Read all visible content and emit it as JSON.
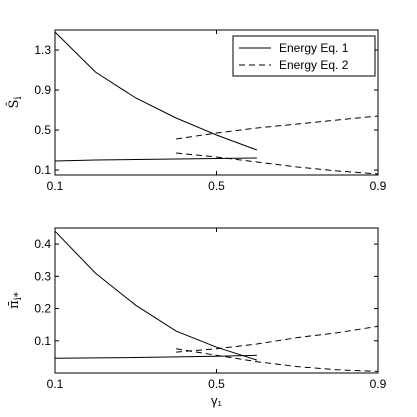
{
  "chart_data": [
    {
      "type": "line",
      "ylabel": "Ŝ_i",
      "xlim": [
        0.1,
        0.9
      ],
      "ylim": [
        0.05,
        1.5
      ],
      "xticks": [
        "0.1",
        "0.5",
        "0.9"
      ],
      "yticks": [
        "0.1",
        "0.5",
        "0.9",
        "1.3"
      ],
      "xtick_values": [
        0.1,
        0.5,
        0.9
      ],
      "ytick_values": [
        0.1,
        0.5,
        0.9,
        1.3
      ],
      "legend": {
        "position": "top-right",
        "entries": [
          "Energy Eq. 1",
          "Energy Eq. 2"
        ]
      },
      "series": [
        {
          "name": "Energy Eq. 1",
          "style": "solid",
          "x": [
            0.1,
            0.2,
            0.3,
            0.4,
            0.5,
            0.6
          ],
          "y": [
            1.48,
            1.08,
            0.82,
            0.62,
            0.45,
            0.3
          ]
        },
        {
          "name": "Energy Eq. 1",
          "style": "solid",
          "x": [
            0.1,
            0.2,
            0.3,
            0.4,
            0.5,
            0.6
          ],
          "y": [
            0.19,
            0.2,
            0.205,
            0.21,
            0.215,
            0.22
          ]
        },
        {
          "name": "Energy Eq. 2",
          "style": "dashed",
          "x": [
            0.4,
            0.5,
            0.6,
            0.7,
            0.8,
            0.9
          ],
          "y": [
            0.41,
            0.47,
            0.52,
            0.56,
            0.6,
            0.64
          ]
        },
        {
          "name": "Energy Eq. 2",
          "style": "dashed",
          "x": [
            0.4,
            0.5,
            0.6,
            0.7,
            0.8,
            0.9
          ],
          "y": [
            0.27,
            0.23,
            0.18,
            0.13,
            0.09,
            0.06
          ]
        }
      ]
    },
    {
      "type": "line",
      "ylabel": "π̄_i*",
      "xlabel": "γ₁",
      "xlim": [
        0.1,
        0.9
      ],
      "ylim": [
        0,
        0.45
      ],
      "xticks": [
        "0.1",
        "0.5",
        "0.9"
      ],
      "yticks": [
        "0.1",
        "0.2",
        "0.3",
        "0.4"
      ],
      "xtick_values": [
        0.1,
        0.5,
        0.9
      ],
      "ytick_values": [
        0.1,
        0.2,
        0.3,
        0.4
      ],
      "series": [
        {
          "name": "Energy Eq. 1",
          "style": "solid",
          "x": [
            0.1,
            0.2,
            0.3,
            0.4,
            0.5,
            0.6
          ],
          "y": [
            0.44,
            0.31,
            0.21,
            0.13,
            0.08,
            0.04
          ]
        },
        {
          "name": "Energy Eq. 1",
          "style": "solid",
          "x": [
            0.1,
            0.2,
            0.3,
            0.4,
            0.5,
            0.6
          ],
          "y": [
            0.046,
            0.047,
            0.048,
            0.05,
            0.052,
            0.055
          ]
        },
        {
          "name": "Energy Eq. 2",
          "style": "dashed",
          "x": [
            0.4,
            0.5,
            0.6,
            0.7,
            0.8,
            0.9
          ],
          "y": [
            0.065,
            0.075,
            0.09,
            0.11,
            0.125,
            0.145
          ]
        },
        {
          "name": "Energy Eq. 2",
          "style": "dashed",
          "x": [
            0.4,
            0.5,
            0.6,
            0.7,
            0.8,
            0.9
          ],
          "y": [
            0.075,
            0.055,
            0.035,
            0.02,
            0.01,
            0.005
          ]
        }
      ]
    }
  ]
}
